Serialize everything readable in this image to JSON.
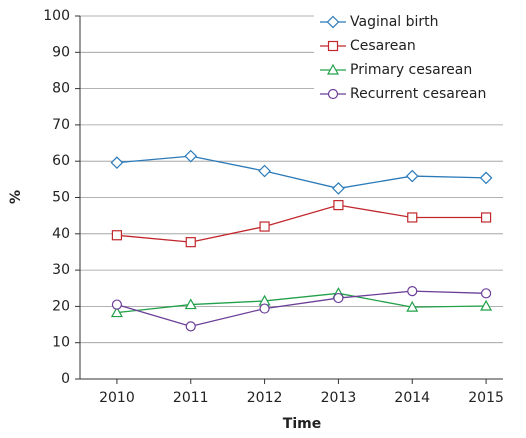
{
  "chart_data": {
    "type": "line",
    "xlabel": "Time",
    "ylabel": "%",
    "categories": [
      "2010",
      "2011",
      "2012",
      "2013",
      "2014",
      "2015"
    ],
    "series": [
      {
        "name": "Vaginal birth",
        "color": "#2a7ab9",
        "marker": "diamond",
        "values": [
          59.6,
          61.4,
          57.3,
          52.5,
          55.9,
          55.4
        ]
      },
      {
        "name": "Cesarean",
        "color": "#c1272d",
        "marker": "square",
        "values": [
          39.6,
          37.7,
          42.0,
          47.9,
          44.5,
          44.5
        ]
      },
      {
        "name": "Primary cesarean",
        "color": "#23a04a",
        "marker": "triangle",
        "values": [
          18.3,
          20.5,
          21.5,
          23.6,
          19.8,
          20.1
        ]
      },
      {
        "name": "Recurrent cesarean",
        "color": "#6b3e98",
        "marker": "circle",
        "values": [
          20.5,
          14.5,
          19.4,
          22.3,
          24.2,
          23.6
        ]
      }
    ],
    "ylim": [
      0,
      100
    ],
    "yticks": [
      0,
      10,
      20,
      30,
      40,
      50,
      60,
      70,
      80,
      90,
      100
    ],
    "grid": true,
    "legend": "upper right"
  }
}
